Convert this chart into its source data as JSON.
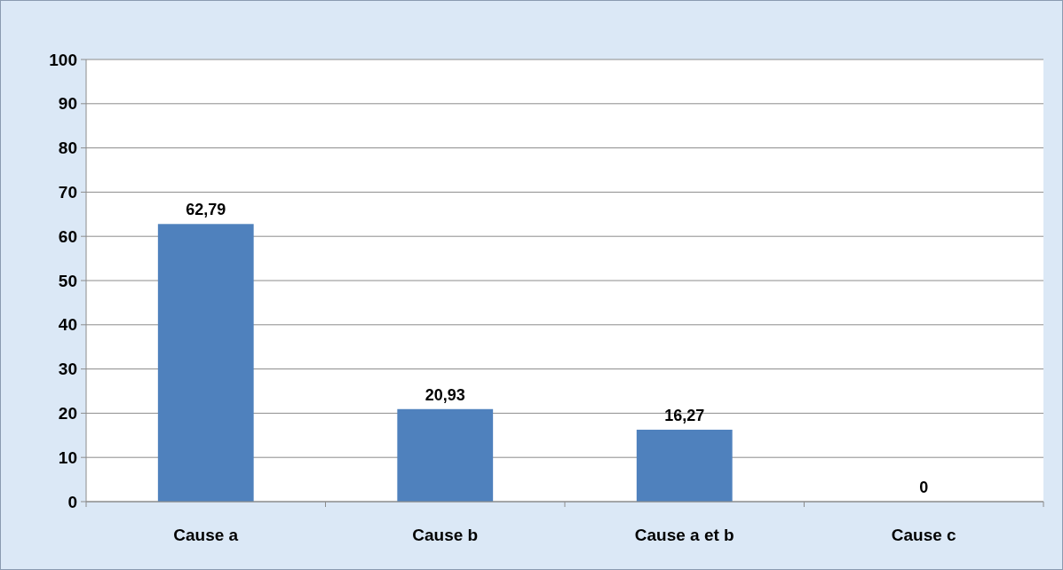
{
  "chart_data": {
    "type": "bar",
    "categories": [
      "Cause a",
      "Cause b",
      "Cause a et b",
      "Cause c"
    ],
    "values": [
      62.79,
      20.93,
      16.27,
      0
    ],
    "value_labels": [
      "62,79",
      "20,93",
      "16,27",
      "0"
    ],
    "color": "#4f81bd",
    "ylim": [
      0,
      100
    ],
    "yticks": [
      0,
      10,
      20,
      30,
      40,
      50,
      60,
      70,
      80,
      90,
      100
    ],
    "grid": "y"
  }
}
